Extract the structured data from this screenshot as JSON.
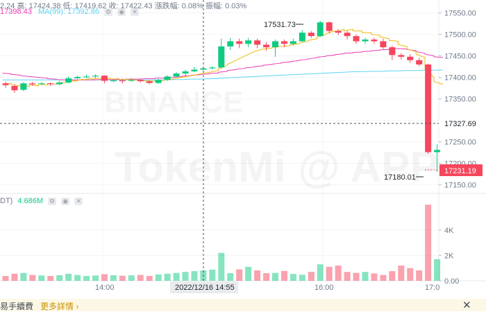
{
  "header": {
    "line1": "2.24  高: 17424.38  低: 17419.62  收: 17422.43  漲跌幅: 0.08%  振幅: 0.03%",
    "ma25_label": "17398.43",
    "ma99_label": "MA(99): 17392.86"
  },
  "volume_header": {
    "label": "DT)",
    "value": "4.686M"
  },
  "watermark": {
    "brand": "BINANCE",
    "app": "TokenMi @ APP"
  },
  "price_axis": {
    "ticks": [
      "17550.00",
      "17500.00",
      "17450.00",
      "17400.00",
      "17350.00",
      "17300.00",
      "17250.00",
      "17200.00",
      "17150.00"
    ],
    "crosshair_label": "17327.69",
    "last_price_label": "17231.19"
  },
  "volume_axis": {
    "ticks": [
      "4K",
      "2K",
      "0.00"
    ]
  },
  "time_axis": {
    "ticks": [
      "14:00",
      "16:00",
      "17:0"
    ],
    "cursor_label": "2022/12/16 14:55"
  },
  "annotations": {
    "high": "17531.73",
    "low": "17180.01"
  },
  "banner": {
    "text": "易手續費",
    "link": "更多詳情 ›",
    "close": "✕"
  },
  "colors": {
    "up": "#0ecb81",
    "down": "#f6465d",
    "ma7": "#f0b90b",
    "ma25": "#eb40b5",
    "ma99": "#5ed3f3"
  },
  "chart_data": {
    "type": "candlestick",
    "candles": [
      {
        "o": 17386,
        "c": 17382,
        "h": 17390,
        "l": 17376
      },
      {
        "o": 17380,
        "c": 17370,
        "h": 17384,
        "l": 17364
      },
      {
        "o": 17371,
        "c": 17386,
        "h": 17389,
        "l": 17368
      },
      {
        "o": 17386,
        "c": 17384,
        "h": 17390,
        "l": 17380
      },
      {
        "o": 17384,
        "c": 17386,
        "h": 17389,
        "l": 17382
      },
      {
        "o": 17386,
        "c": 17384,
        "h": 17388,
        "l": 17380
      },
      {
        "o": 17384,
        "c": 17388,
        "h": 17392,
        "l": 17382
      },
      {
        "o": 17388,
        "c": 17398,
        "h": 17402,
        "l": 17386
      },
      {
        "o": 17398,
        "c": 17401,
        "h": 17404,
        "l": 17396
      },
      {
        "o": 17401,
        "c": 17402,
        "h": 17406,
        "l": 17398
      },
      {
        "o": 17402,
        "c": 17404,
        "h": 17407,
        "l": 17398
      },
      {
        "o": 17404,
        "c": 17392,
        "h": 17405,
        "l": 17386
      },
      {
        "o": 17392,
        "c": 17393,
        "h": 17396,
        "l": 17389
      },
      {
        "o": 17393,
        "c": 17392,
        "h": 17397,
        "l": 17386
      },
      {
        "o": 17392,
        "c": 17394,
        "h": 17398,
        "l": 17390
      },
      {
        "o": 17394,
        "c": 17391,
        "h": 17396,
        "l": 17388
      },
      {
        "o": 17391,
        "c": 17387,
        "h": 17393,
        "l": 17384
      },
      {
        "o": 17387,
        "c": 17394,
        "h": 17397,
        "l": 17385
      },
      {
        "o": 17394,
        "c": 17402,
        "h": 17405,
        "l": 17392
      },
      {
        "o": 17402,
        "c": 17409,
        "h": 17412,
        "l": 17400
      },
      {
        "o": 17409,
        "c": 17414,
        "h": 17418,
        "l": 17404
      },
      {
        "o": 17414,
        "c": 17418,
        "h": 17424,
        "l": 17412
      },
      {
        "o": 17418,
        "c": 17421,
        "h": 17424,
        "l": 17416
      },
      {
        "o": 17421,
        "c": 17423,
        "h": 17426,
        "l": 17418
      },
      {
        "o": 17423,
        "c": 17472,
        "h": 17490,
        "l": 17420
      },
      {
        "o": 17472,
        "c": 17484,
        "h": 17492,
        "l": 17464
      },
      {
        "o": 17484,
        "c": 17478,
        "h": 17490,
        "l": 17468
      },
      {
        "o": 17478,
        "c": 17486,
        "h": 17492,
        "l": 17470
      },
      {
        "o": 17486,
        "c": 17476,
        "h": 17490,
        "l": 17468
      },
      {
        "o": 17476,
        "c": 17470,
        "h": 17482,
        "l": 17462
      },
      {
        "o": 17470,
        "c": 17484,
        "h": 17488,
        "l": 17448
      },
      {
        "o": 17484,
        "c": 17478,
        "h": 17488,
        "l": 17470
      },
      {
        "o": 17478,
        "c": 17484,
        "h": 17490,
        "l": 17474
      },
      {
        "o": 17484,
        "c": 17504,
        "h": 17510,
        "l": 17482
      },
      {
        "o": 17504,
        "c": 17496,
        "h": 17508,
        "l": 17492
      },
      {
        "o": 17496,
        "c": 17528,
        "h": 17531.73,
        "l": 17494
      },
      {
        "o": 17528,
        "c": 17508,
        "h": 17530,
        "l": 17502
      },
      {
        "o": 17508,
        "c": 17504,
        "h": 17512,
        "l": 17498
      },
      {
        "o": 17504,
        "c": 17496,
        "h": 17508,
        "l": 17488
      },
      {
        "o": 17496,
        "c": 17484,
        "h": 17500,
        "l": 17478
      },
      {
        "o": 17484,
        "c": 17488,
        "h": 17492,
        "l": 17478
      },
      {
        "o": 17488,
        "c": 17484,
        "h": 17492,
        "l": 17478
      },
      {
        "o": 17484,
        "c": 17470,
        "h": 17490,
        "l": 17466
      },
      {
        "o": 17470,
        "c": 17452,
        "h": 17474,
        "l": 17440
      },
      {
        "o": 17452,
        "c": 17448,
        "h": 17456,
        "l": 17442
      },
      {
        "o": 17448,
        "c": 17440,
        "h": 17454,
        "l": 17434
      },
      {
        "o": 17440,
        "c": 17430,
        "h": 17446,
        "l": 17426
      },
      {
        "o": 17430,
        "c": 17226,
        "h": 17432,
        "l": 17222
      },
      {
        "o": 17226,
        "c": 17231.19,
        "h": 17244,
        "l": 17180.01
      }
    ],
    "volumes": [
      380,
      560,
      620,
      460,
      420,
      380,
      440,
      560,
      460,
      380,
      420,
      520,
      440,
      400,
      430,
      460,
      380,
      500,
      560,
      620,
      700,
      760,
      820,
      880,
      2200,
      600,
      900,
      1100,
      820,
      600,
      620,
      780,
      540,
      480,
      700,
      1300,
      1100,
      1200,
      700,
      620,
      700,
      580,
      460,
      760,
      1200,
      1000,
      820,
      6000,
      1700
    ],
    "ma7": [
      [
        17385,
        17386
      ],
      [
        17383,
        17380
      ],
      [
        17382,
        17378
      ],
      [
        17383,
        17380
      ],
      [
        17385,
        17382
      ],
      [
        17386,
        17384
      ],
      [
        17387,
        17388
      ],
      [
        17389,
        17392
      ],
      [
        17391,
        17396
      ],
      [
        17394,
        17398
      ],
      [
        17396,
        17398
      ],
      [
        17396,
        17398
      ],
      [
        17396,
        17397
      ],
      [
        17395,
        17396
      ],
      [
        17394,
        17394
      ],
      [
        17393,
        17392
      ],
      [
        17392,
        17391
      ],
      [
        17392,
        17393
      ],
      [
        17394,
        17396
      ],
      [
        17397,
        17400
      ],
      [
        17400,
        17404
      ],
      [
        17404,
        17408
      ],
      [
        17408,
        17412
      ],
      [
        17412,
        17416
      ],
      [
        17420,
        17428
      ],
      [
        17430,
        17440
      ],
      [
        17440,
        17450
      ],
      [
        17450,
        17460
      ],
      [
        17460,
        17466
      ],
      [
        17466,
        17468
      ],
      [
        17470,
        17472
      ],
      [
        17472,
        17474
      ],
      [
        17476,
        17478
      ],
      [
        17480,
        17484
      ],
      [
        17486,
        17490
      ],
      [
        17494,
        17500
      ],
      [
        17502,
        17508
      ],
      [
        17506,
        17512
      ],
      [
        17508,
        17512
      ],
      [
        17508,
        17508
      ],
      [
        17504,
        17504
      ],
      [
        17500,
        17498
      ],
      [
        17494,
        17490
      ],
      [
        17486,
        17484
      ],
      [
        17476,
        17472
      ],
      [
        17466,
        17460
      ],
      [
        17454,
        17446
      ],
      [
        17420,
        17400
      ],
      [
        17390,
        17384
      ]
    ],
    "ma25": [
      [
        17410,
        17408
      ],
      [
        17407,
        17405
      ],
      [
        17404,
        17402
      ],
      [
        17402,
        17400
      ],
      [
        17400,
        17398
      ],
      [
        17397,
        17396
      ],
      [
        17395,
        17394
      ],
      [
        17394,
        17394
      ],
      [
        17394,
        17394
      ],
      [
        17394,
        17394
      ],
      [
        17394,
        17395
      ],
      [
        17395,
        17395
      ],
      [
        17395,
        17395
      ],
      [
        17395,
        17396
      ],
      [
        17396,
        17396
      ],
      [
        17396,
        17397
      ],
      [
        17397,
        17397
      ],
      [
        17398,
        17398
      ],
      [
        17399,
        17400
      ],
      [
        17400,
        17402
      ],
      [
        17403,
        17404
      ],
      [
        17405,
        17406
      ],
      [
        17407,
        17408
      ],
      [
        17409,
        17410
      ],
      [
        17412,
        17414
      ],
      [
        17416,
        17418
      ],
      [
        17419,
        17421
      ],
      [
        17422,
        17424
      ],
      [
        17425,
        17427
      ],
      [
        17428,
        17430
      ],
      [
        17431,
        17433
      ],
      [
        17434,
        17436
      ],
      [
        17437,
        17439
      ],
      [
        17440,
        17442
      ],
      [
        17443,
        17446
      ],
      [
        17447,
        17449
      ],
      [
        17450,
        17452
      ],
      [
        17453,
        17455
      ],
      [
        17456,
        17457
      ],
      [
        17458,
        17459
      ],
      [
        17460,
        17461
      ],
      [
        17462,
        17463
      ],
      [
        17464,
        17465
      ],
      [
        17466,
        17467
      ],
      [
        17467,
        17466
      ],
      [
        17465,
        17462
      ],
      [
        17460,
        17456
      ],
      [
        17454,
        17450
      ],
      [
        17448,
        17446
      ]
    ],
    "ma99": [
      [
        17394,
        17394
      ],
      [
        17394,
        17394
      ],
      [
        17394,
        17394
      ],
      [
        17394,
        17394
      ],
      [
        17394,
        17394
      ],
      [
        17394,
        17394
      ],
      [
        17394,
        17394
      ],
      [
        17394,
        17394
      ],
      [
        17394,
        17394
      ],
      [
        17394,
        17394
      ],
      [
        17394,
        17394
      ],
      [
        17394,
        17394
      ],
      [
        17394,
        17394
      ],
      [
        17394,
        17394
      ],
      [
        17394,
        17394
      ],
      [
        17394,
        17394
      ],
      [
        17394,
        17394
      ],
      [
        17394,
        17394
      ],
      [
        17394,
        17395
      ],
      [
        17395,
        17395
      ],
      [
        17395,
        17396
      ],
      [
        17396,
        17396
      ],
      [
        17396,
        17397
      ],
      [
        17397,
        17397
      ],
      [
        17398,
        17398
      ],
      [
        17399,
        17400
      ],
      [
        17400,
        17401
      ],
      [
        17401,
        17402
      ],
      [
        17402,
        17403
      ],
      [
        17403,
        17404
      ],
      [
        17404,
        17405
      ],
      [
        17405,
        17406
      ],
      [
        17406,
        17407
      ],
      [
        17407,
        17408
      ],
      [
        17408,
        17409
      ],
      [
        17409,
        17410
      ],
      [
        17410,
        17411
      ],
      [
        17411,
        17412
      ],
      [
        17412,
        17413
      ],
      [
        17413,
        17413
      ],
      [
        17413,
        17414
      ],
      [
        17414,
        17414
      ],
      [
        17414,
        17415
      ],
      [
        17415,
        17415
      ],
      [
        17415,
        17416
      ],
      [
        17416,
        17416
      ],
      [
        17416,
        17417
      ],
      [
        17417,
        17417
      ],
      [
        17417,
        17417
      ]
    ],
    "y_range": [
      17130,
      17580
    ],
    "volume_range": [
      0,
      6500
    ]
  }
}
